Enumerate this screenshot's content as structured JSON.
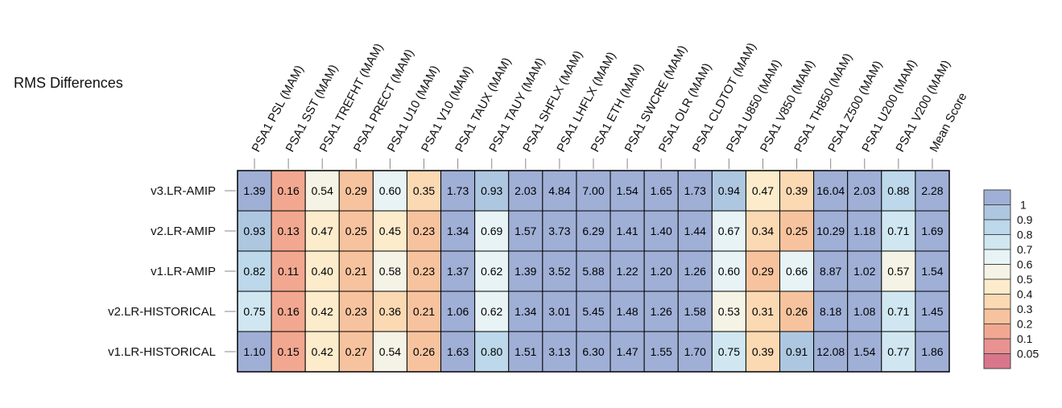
{
  "chart_data": {
    "type": "heatmap",
    "title": "RMS Differences",
    "columns": [
      "PSA1 PSL (MAM)",
      "PSA1 SST (MAM)",
      "PSA1 TREFHT (MAM)",
      "PSA1 PRECT (MAM)",
      "PSA1 U10 (MAM)",
      "PSA1 V10 (MAM)",
      "PSA1 TAUX (MAM)",
      "PSA1 TAUY (MAM)",
      "PSA1 SHFLX (MAM)",
      "PSA1 LHFLX (MAM)",
      "PSA1 ETH (MAM)",
      "PSA1 SWCRE (MAM)",
      "PSA1 OLR (MAM)",
      "PSA1 CLDTOT (MAM)",
      "PSA1 U850 (MAM)",
      "PSA1 V850 (MAM)",
      "PSA1 TH850 (MAM)",
      "PSA1 Z500 (MAM)",
      "PSA1 U200 (MAM)",
      "PSA1 V200 (MAM)",
      "Mean Score"
    ],
    "rows": [
      "v3.LR-AMIP",
      "v2.LR-AMIP",
      "v1.LR-AMIP",
      "v2.LR-HISTORICAL",
      "v1.LR-HISTORICAL"
    ],
    "values": [
      [
        1.39,
        0.16,
        0.54,
        0.29,
        0.6,
        0.35,
        1.73,
        0.93,
        2.03,
        4.84,
        7.0,
        1.54,
        1.65,
        1.73,
        0.94,
        0.47,
        0.39,
        16.04,
        2.03,
        0.88,
        2.28
      ],
      [
        0.93,
        0.13,
        0.47,
        0.25,
        0.45,
        0.23,
        1.34,
        0.69,
        1.57,
        3.73,
        6.29,
        1.41,
        1.4,
        1.44,
        0.67,
        0.34,
        0.25,
        10.29,
        1.18,
        0.71,
        1.69
      ],
      [
        0.82,
        0.11,
        0.4,
        0.21,
        0.58,
        0.23,
        1.37,
        0.62,
        1.39,
        3.52,
        5.88,
        1.22,
        1.2,
        1.26,
        0.6,
        0.29,
        0.66,
        8.87,
        1.02,
        0.57,
        1.54
      ],
      [
        0.75,
        0.16,
        0.42,
        0.23,
        0.36,
        0.21,
        1.06,
        0.62,
        1.34,
        3.01,
        5.45,
        1.48,
        1.26,
        1.58,
        0.53,
        0.31,
        0.26,
        8.18,
        1.08,
        0.71,
        1.45
      ],
      [
        1.1,
        0.15,
        0.42,
        0.27,
        0.54,
        0.26,
        1.63,
        0.8,
        1.51,
        3.13,
        6.3,
        1.47,
        1.55,
        1.7,
        0.75,
        0.39,
        0.91,
        12.08,
        1.54,
        0.77,
        1.86
      ]
    ],
    "display": [
      [
        "1.39",
        "0.16",
        "0.54",
        "0.29",
        "0.60",
        "0.35",
        "1.73",
        "0.93",
        "2.03",
        "4.84",
        "7.00",
        "1.54",
        "1.65",
        "1.73",
        "0.94",
        "0.47",
        "0.39",
        "16.04",
        "2.03",
        "0.88",
        "2.28"
      ],
      [
        "0.93",
        "0.13",
        "0.47",
        "0.25",
        "0.45",
        "0.23",
        "1.34",
        "0.69",
        "1.57",
        "3.73",
        "6.29",
        "1.41",
        "1.40",
        "1.44",
        "0.67",
        "0.34",
        "0.25",
        "10.29",
        "1.18",
        "0.71",
        "1.69"
      ],
      [
        "0.82",
        "0.11",
        "0.40",
        "0.21",
        "0.58",
        "0.23",
        "1.37",
        "0.62",
        "1.39",
        "3.52",
        "5.88",
        "1.22",
        "1.20",
        "1.26",
        "0.60",
        "0.29",
        "0.66",
        "8.87",
        "1.02",
        "0.57",
        "1.54"
      ],
      [
        "0.75",
        "0.16",
        "0.42",
        "0.23",
        "0.36",
        "0.21",
        "1.06",
        "0.62",
        "1.34",
        "3.01",
        "5.45",
        "1.48",
        "1.26",
        "1.58",
        "0.53",
        "0.31",
        "0.26",
        "8.18",
        "1.08",
        "0.71",
        "1.45"
      ],
      [
        "1.10",
        "0.15",
        "0.42",
        "0.27",
        "0.54",
        "0.26",
        "1.63",
        "0.80",
        "1.51",
        "3.13",
        "6.30",
        "1.47",
        "1.55",
        "1.70",
        "0.75",
        "0.39",
        "0.91",
        "12.08",
        "1.54",
        "0.77",
        "1.86"
      ]
    ],
    "colorbar": {
      "labels": [
        "1",
        "0.9",
        "0.8",
        "0.7",
        "0.6",
        "0.5",
        "0.4",
        "0.3",
        "0.2",
        "0.1",
        "0.05"
      ],
      "bins": [
        {
          "min": 1.0,
          "color": "#9fafd6"
        },
        {
          "min": 0.9,
          "color": "#aec7e0"
        },
        {
          "min": 0.8,
          "color": "#bcd8ea"
        },
        {
          "min": 0.7,
          "color": "#d0e7f1"
        },
        {
          "min": 0.6,
          "color": "#e8f3f6"
        },
        {
          "min": 0.5,
          "color": "#f5f3e6"
        },
        {
          "min": 0.4,
          "color": "#fdeccb"
        },
        {
          "min": 0.3,
          "color": "#fbd9b3"
        },
        {
          "min": 0.2,
          "color": "#f7c39e"
        },
        {
          "min": 0.1,
          "color": "#f2a890"
        },
        {
          "min": 0.05,
          "color": "#e99292"
        },
        {
          "min": 0.0,
          "color": "#d9768c"
        }
      ]
    }
  }
}
